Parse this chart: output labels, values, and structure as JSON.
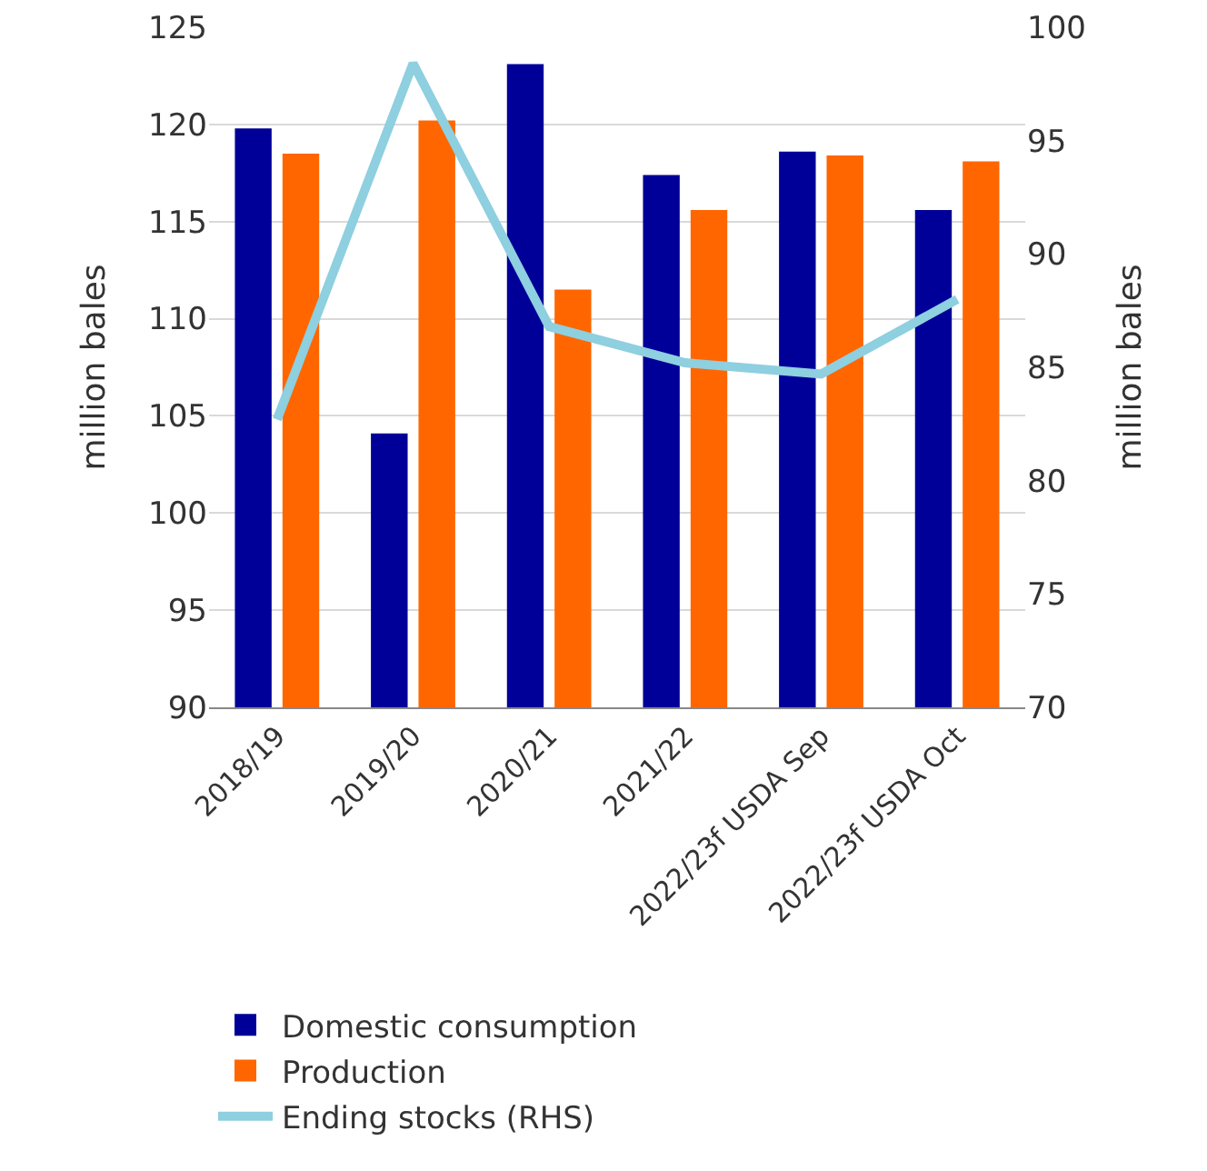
{
  "chart_data": {
    "type": "bar",
    "categories": [
      "2018/19",
      "2019/20",
      "2020/21",
      "2021/22",
      "2022/23f USDA Sep",
      "2022/23f USDA Oct"
    ],
    "series": [
      {
        "name": "Domestic consumption",
        "color": "#000099",
        "values": [
          119.8,
          104.1,
          123.1,
          117.4,
          118.6,
          115.6
        ]
      },
      {
        "name": "Production",
        "color": "#ff6600",
        "values": [
          118.5,
          120.2,
          111.5,
          115.6,
          118.4,
          118.1
        ]
      },
      {
        "name": "Ending stocks (RHS)",
        "type": "line",
        "axis": "y2",
        "color": "#8ecfe0",
        "marker": "none",
        "values": [
          82.7,
          98.4,
          86.8,
          85.2,
          84.7,
          88.0
        ]
      }
    ],
    "ylabel": "million bales",
    "y2label": "million bales",
    "ylim": [
      90,
      125
    ],
    "yticks": [
      90,
      95,
      100,
      105,
      110,
      115,
      120,
      125
    ],
    "y2lim": [
      70,
      100
    ],
    "y2ticks": [
      70,
      75,
      80,
      85,
      90,
      95,
      100
    ],
    "grid": "y",
    "legend": "bottom"
  }
}
